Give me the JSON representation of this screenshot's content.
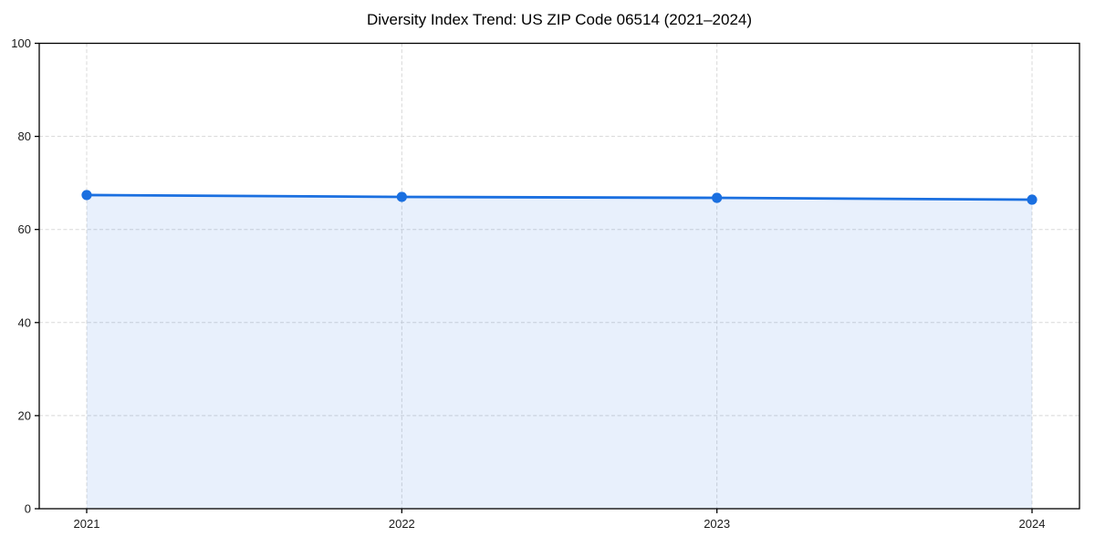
{
  "chart_data": {
    "type": "line",
    "title": "Diversity Index Trend: US ZIP Code 06514 (2021–2024)",
    "categories": [
      "2021",
      "2022",
      "2023",
      "2024"
    ],
    "series": [
      {
        "name": "Diversity Index",
        "values": [
          67.4,
          67.0,
          66.8,
          66.4
        ]
      }
    ],
    "xlabel": "",
    "ylabel": "",
    "ylim": [
      0,
      100
    ],
    "yticks": [
      0,
      20,
      40,
      60,
      80,
      100
    ],
    "grid": "dashed-horizontal-and-vertical",
    "legend": "none",
    "area_fill": true,
    "colors": {
      "line": "#1a6fe0",
      "marker": "#1a6fe0",
      "fill": "rgba(26,111,224,0.10)",
      "grid": "#d8d8d8",
      "axis": "#000000",
      "tick_text": "#1a1a1a",
      "background": "#ffffff"
    }
  }
}
